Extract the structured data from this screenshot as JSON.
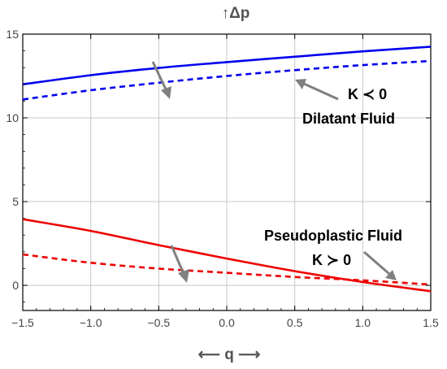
{
  "chart_data": {
    "type": "line",
    "title": "",
    "ylabel": "↑Δp",
    "xlabel": "⟵ q ⟶",
    "xlim": [
      -1.5,
      1.5
    ],
    "ylim": [
      -1.5,
      15
    ],
    "grid": true,
    "x_ticks": [
      "−1.5",
      "−1.0",
      "−0.5",
      "0.0",
      "0.5",
      "1.0",
      "1.5"
    ],
    "y_ticks": [
      "0",
      "5",
      "10",
      "15"
    ],
    "series": [
      {
        "color": "#0000ee",
        "style": "solid",
        "x": [
          -1.5,
          -1.0,
          -0.5,
          0.0,
          0.5,
          1.0,
          1.5
        ],
        "y": [
          12.0,
          12.55,
          12.98,
          13.33,
          13.65,
          13.97,
          14.25
        ]
      },
      {
        "color": "#0000ee",
        "style": "dashed",
        "x": [
          -1.5,
          -1.0,
          -0.5,
          0.0,
          0.5,
          1.0,
          1.5
        ],
        "y": [
          11.1,
          11.65,
          12.1,
          12.5,
          12.85,
          13.15,
          13.4
        ]
      },
      {
        "color": "#ee0000",
        "style": "solid",
        "x": [
          -1.5,
          -1.0,
          -0.5,
          0.0,
          0.5,
          1.0,
          1.5
        ],
        "y": [
          3.95,
          3.25,
          2.4,
          1.6,
          0.85,
          0.2,
          -0.35
        ]
      },
      {
        "color": "#ee0000",
        "style": "dashed",
        "x": [
          -1.5,
          -1.0,
          -0.5,
          0.0,
          0.5,
          1.0,
          1.5
        ],
        "y": [
          1.85,
          1.35,
          1.0,
          0.75,
          0.5,
          0.3,
          0.05
        ]
      }
    ],
    "annotations": {
      "k_negative": "K ≺ 0",
      "dilatant": "Dilatant Fluid",
      "pseudoplastic": "Pseudoplastic Fluid",
      "k_positive": "K ≻ 0"
    },
    "arrow_color": "#808080"
  }
}
